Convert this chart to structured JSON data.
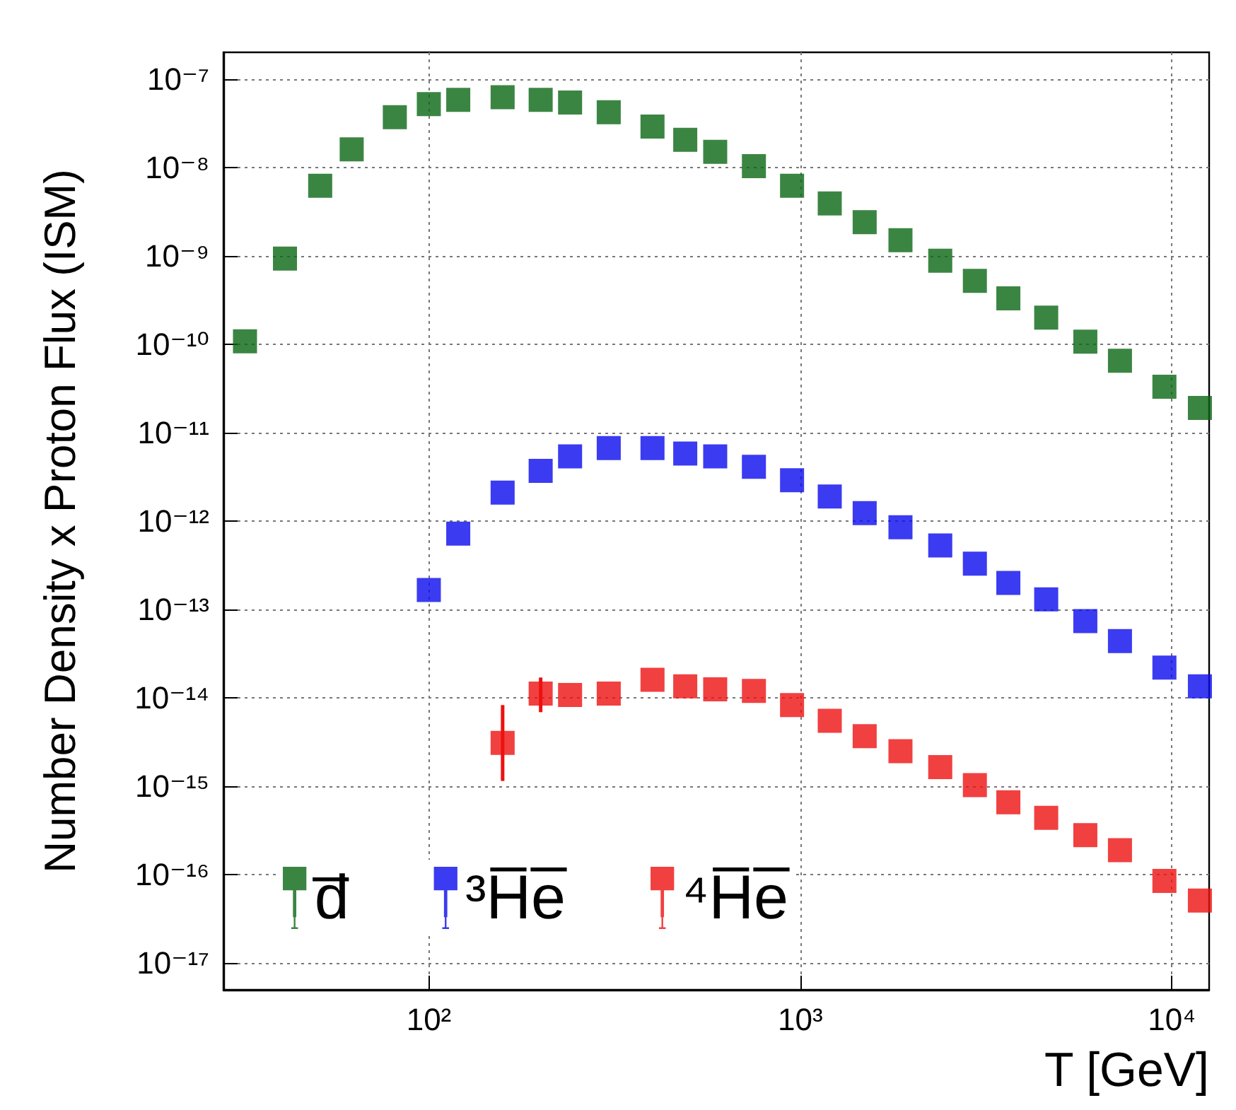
{
  "chart_data": {
    "type": "scatter",
    "xlabel": "T [GeV]",
    "ylabel": "Number Density x Proton Flux (ISM)",
    "log": "xy",
    "grid": true,
    "legend": "bottom left",
    "marker": "square",
    "xlim": [
      28,
      12600
    ],
    "ylim": [
      5e-18,
      2e-07
    ],
    "xticks": [
      {
        "value": 100,
        "label": "10²"
      },
      {
        "value": 1000,
        "label": "10³"
      },
      {
        "value": 10000,
        "label": "10⁴"
      }
    ],
    "yticks": [
      {
        "value": 1e-17,
        "label": "10⁻¹⁷"
      },
      {
        "value": 1e-16,
        "label": "10⁻¹⁶"
      },
      {
        "value": 1e-15,
        "label": "10⁻¹⁵"
      },
      {
        "value": 1e-14,
        "label": "10⁻¹⁴"
      },
      {
        "value": 1e-13,
        "label": "10⁻¹³"
      },
      {
        "value": 1e-12,
        "label": "10⁻¹²"
      },
      {
        "value": 1e-11,
        "label": "10⁻¹¹"
      },
      {
        "value": 1e-10,
        "label": "10⁻¹⁰"
      },
      {
        "value": 1e-09,
        "label": "10⁻⁹"
      },
      {
        "value": 1e-08,
        "label": "10⁻⁸"
      },
      {
        "value": 1e-07,
        "label": "10⁻⁷"
      }
    ],
    "series": [
      {
        "name": "d̅",
        "color": "#0a6614",
        "x": [
          32,
          41,
          51,
          62,
          81,
          100,
          120,
          158,
          200,
          240,
          305,
          400,
          490,
          590,
          750,
          950,
          1200,
          1490,
          1860,
          2380,
          2950,
          3630,
          4590,
          5850,
          7250,
          9550,
          11900
        ],
        "values": [
          1.08e-10,
          9.3e-10,
          6.2e-09,
          1.6e-08,
          3.7e-08,
          5.2e-08,
          5.8e-08,
          6.2e-08,
          5.8e-08,
          5.4e-08,
          4.2e-08,
          2.9e-08,
          2.05e-08,
          1.5e-08,
          1.03e-08,
          6.2e-09,
          3.9e-09,
          2.4e-09,
          1.5e-09,
          8.8e-10,
          5.2e-10,
          3.3e-10,
          2e-10,
          1.07e-10,
          6.5e-11,
          3.3e-11,
          1.9e-11
        ]
      },
      {
        "name": "³H̅e̅",
        "color": "#0a0aee",
        "x": [
          100,
          120,
          158,
          200,
          240,
          305,
          400,
          490,
          590,
          750,
          950,
          1200,
          1490,
          1860,
          2380,
          2950,
          3630,
          4590,
          5850,
          7250,
          9550,
          11900
        ],
        "values": [
          1.66e-13,
          7.2e-13,
          2.1e-12,
          3.7e-12,
          5.4e-12,
          6.7e-12,
          6.7e-12,
          5.8e-12,
          5.4e-12,
          4.1e-12,
          2.9e-12,
          1.9e-12,
          1.23e-12,
          8.5e-13,
          5.3e-13,
          3.3e-13,
          2e-13,
          1.3e-13,
          7.4e-14,
          4.4e-14,
          2.2e-14,
          1.35e-14
        ]
      },
      {
        "name": "⁴H̅e̅",
        "color": "#ee1010",
        "x": [
          158,
          200,
          240,
          305,
          400,
          490,
          590,
          750,
          950,
          1200,
          1490,
          1860,
          2380,
          2950,
          3630,
          4590,
          5850,
          7250,
          9550,
          11900
        ],
        "values": [
          3.1e-15,
          1.12e-14,
          1.08e-14,
          1.12e-14,
          1.6e-14,
          1.35e-14,
          1.25e-14,
          1.2e-14,
          8.3e-15,
          5.5e-15,
          3.7e-15,
          2.5e-15,
          1.65e-15,
          1.03e-15,
          6.6e-16,
          4.4e-16,
          2.8e-16,
          1.9e-16,
          8.5e-17,
          5.1e-17
        ],
        "errors": [
          [
            1.15e-15,
            8.3e-15
          ],
          [
            6.9e-15,
            1.7e-14
          ],
          null,
          null,
          null,
          null,
          null,
          null,
          null,
          null,
          null,
          null,
          null,
          null,
          null,
          null,
          null,
          null,
          null,
          null
        ]
      }
    ]
  }
}
